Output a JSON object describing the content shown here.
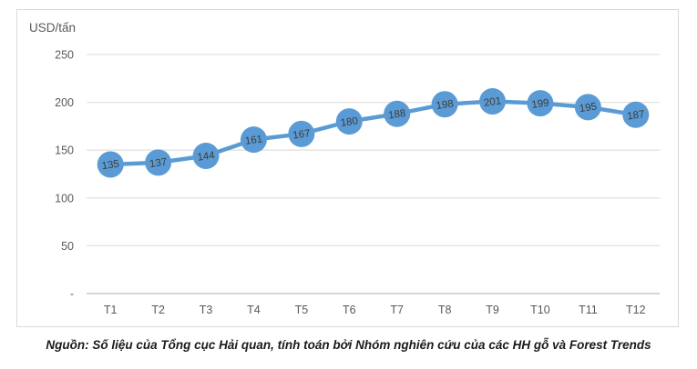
{
  "chart_data": {
    "type": "line",
    "title": "",
    "ylabel_unit": "USD/tấn",
    "xlabel": "",
    "categories": [
      "T1",
      "T2",
      "T3",
      "T4",
      "T5",
      "T6",
      "T7",
      "T8",
      "T9",
      "T10",
      "T11",
      "T12"
    ],
    "values": [
      135,
      137,
      144,
      161,
      167,
      180,
      188,
      198,
      201,
      199,
      195,
      187
    ],
    "series_name": "",
    "ylim": [
      0,
      250
    ],
    "y_ticks": [
      0,
      50,
      100,
      150,
      200,
      250
    ],
    "y_tick_labels": [
      "-",
      "50",
      "100",
      "150",
      "200",
      "250"
    ],
    "grid": true,
    "legend": false,
    "colors": {
      "line": "#5b9bd5",
      "marker": "#5b9bd5",
      "data_label": "#3b3b3b",
      "tick_label": "#595959",
      "gridline": "#e2e2e2",
      "axis_line": "#bfbfbf",
      "chart_border": "#d9d9d9"
    }
  },
  "caption": "Nguồn: Số liệu của Tổng cục Hải quan, tính toán bởi Nhóm nghiên cứu của các HH gỗ và Forest Trends"
}
